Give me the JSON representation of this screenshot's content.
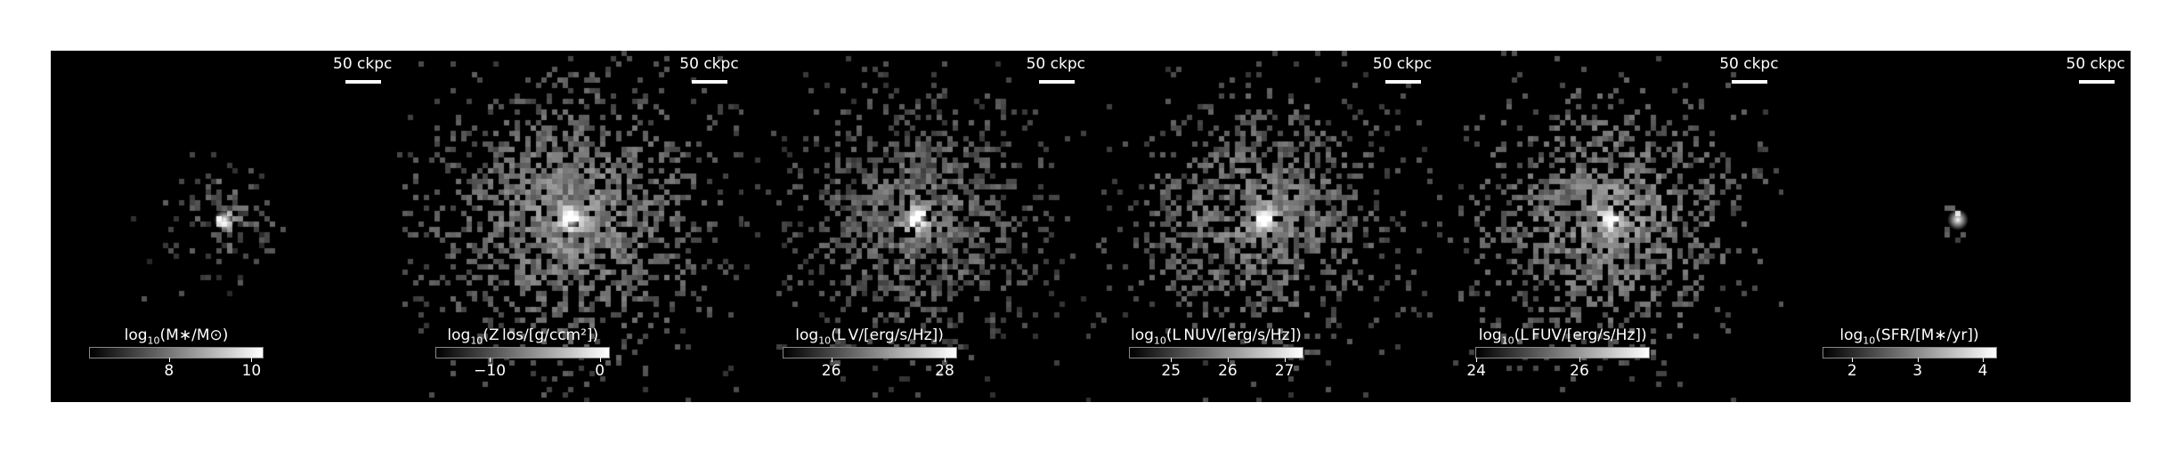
{
  "panels": [
    {
      "id": "stellar-mass",
      "scalebar": "50 ckpc",
      "colorbar": {
        "pre": "log",
        "sub": "10",
        "post": "(M∗/M⊙)",
        "ticks": [
          {
            "label": "8",
            "frac": 0.46
          },
          {
            "label": "10",
            "frac": 0.94
          }
        ]
      },
      "map": {
        "seed": 11,
        "spread": 0.38,
        "prob": 0.55,
        "core": 0.9,
        "base": 0.25
      }
    },
    {
      "id": "metallicity",
      "scalebar": "50 ckpc",
      "colorbar": {
        "pre": "log",
        "sub": "10",
        "post": "(Z los/[g/ccm²])",
        "ticks": [
          {
            "label": "−10",
            "frac": 0.31
          },
          {
            "label": "0",
            "frac": 0.95
          }
        ]
      },
      "map": {
        "seed": 23,
        "spread": 0.95,
        "prob": 0.9,
        "core": 0.75,
        "base": 0.45
      }
    },
    {
      "id": "v-band",
      "scalebar": "50 ckpc",
      "colorbar": {
        "pre": "log",
        "sub": "10",
        "post": "(L V/[erg/s/Hz])",
        "ticks": [
          {
            "label": "26",
            "frac": 0.28
          },
          {
            "label": "28",
            "frac": 0.94
          }
        ]
      },
      "map": {
        "seed": 37,
        "spread": 0.85,
        "prob": 0.85,
        "core": 0.9,
        "base": 0.35
      }
    },
    {
      "id": "nuv",
      "scalebar": "50 ckpc",
      "colorbar": {
        "pre": "log",
        "sub": "10",
        "post": "(L NUV/[erg/s/Hz])",
        "ticks": [
          {
            "label": "25",
            "frac": 0.24
          },
          {
            "label": "26",
            "frac": 0.57
          },
          {
            "label": "27",
            "frac": 0.9
          }
        ]
      },
      "map": {
        "seed": 51,
        "spread": 0.85,
        "prob": 0.85,
        "core": 0.75,
        "base": 0.4
      }
    },
    {
      "id": "fuv",
      "scalebar": "50 ckpc",
      "colorbar": {
        "pre": "log",
        "sub": "10",
        "post": "(L FUV/[erg/s/Hz])",
        "ticks": [
          {
            "label": "24",
            "frac": 0.0
          },
          {
            "label": "26",
            "frac": 0.6
          }
        ]
      },
      "map": {
        "seed": 67,
        "spread": 0.85,
        "prob": 0.85,
        "core": 0.7,
        "base": 0.45
      }
    },
    {
      "id": "sfr",
      "scalebar": "50 ckpc",
      "colorbar": {
        "pre": "log",
        "sub": "10",
        "post": "(SFR/[M∗/yr])",
        "ticks": [
          {
            "label": "2",
            "frac": 0.17
          },
          {
            "label": "3",
            "frac": 0.55
          },
          {
            "label": "4",
            "frac": 0.93
          }
        ]
      },
      "map": {
        "seed": 83,
        "spread": 0.12,
        "prob": 0.4,
        "core": 1.0,
        "base": 0.3
      }
    }
  ]
}
